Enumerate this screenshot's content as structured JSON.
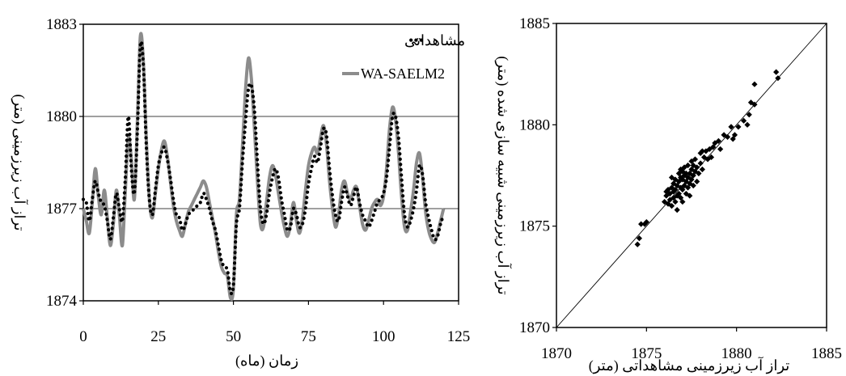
{
  "chart_data": [
    {
      "type": "line",
      "xlabel": "زمان (ماه)",
      "ylabel": "تراز آب زیرزمینی (متر)",
      "xlim": [
        0,
        125
      ],
      "ylim": [
        1874,
        1883
      ],
      "xticks": [
        0,
        25,
        50,
        75,
        100,
        125
      ],
      "yticks": [
        1874,
        1877,
        1880,
        1883
      ],
      "legend_position": "top-right",
      "series": [
        {
          "name": "مشاهداتی",
          "style": "dotted",
          "color": "#000000",
          "x": [
            0,
            1,
            2,
            3,
            4,
            5,
            6,
            7,
            8,
            9,
            10,
            11,
            12,
            13,
            14,
            15,
            16,
            17,
            18,
            19,
            20,
            21,
            22,
            23,
            24,
            25,
            26,
            27,
            28,
            29,
            30,
            31,
            32,
            33,
            34,
            35,
            36,
            37,
            38,
            39,
            40,
            41,
            42,
            43,
            44,
            45,
            46,
            47,
            48,
            49,
            50,
            51,
            52,
            53,
            54,
            55,
            56,
            57,
            58,
            59,
            60,
            61,
            62,
            63,
            64,
            65,
            66,
            67,
            68,
            69,
            70,
            71,
            72,
            73,
            74,
            75,
            76,
            77,
            78,
            79,
            80,
            81,
            82,
            83,
            84,
            85,
            86,
            87,
            88,
            89,
            90,
            91,
            92,
            93,
            94,
            95,
            96,
            97,
            98,
            99,
            100,
            101,
            102,
            103,
            104,
            105,
            106,
            107,
            108,
            109,
            110,
            111,
            112,
            113,
            114,
            115,
            116,
            117,
            118,
            119,
            120
          ],
          "y": [
            1877.3,
            1877.2,
            1876.6,
            1877.3,
            1877.9,
            1877.5,
            1877.2,
            1877.1,
            1876.6,
            1876.0,
            1876.7,
            1877.5,
            1877.0,
            1876.6,
            1878.0,
            1880.0,
            1878.3,
            1877.5,
            1879.5,
            1882.3,
            1881.7,
            1879.0,
            1877.3,
            1876.8,
            1877.6,
            1878.4,
            1878.8,
            1879.0,
            1878.6,
            1878.0,
            1877.3,
            1876.8,
            1876.7,
            1876.3,
            1876.5,
            1876.8,
            1876.9,
            1877.0,
            1877.1,
            1877.2,
            1877.5,
            1877.3,
            1877.0,
            1876.6,
            1876.3,
            1875.8,
            1875.3,
            1875.1,
            1875.0,
            1874.3,
            1874.5,
            1876.5,
            1877.0,
            1878.5,
            1879.8,
            1880.9,
            1881.0,
            1880.2,
            1878.5,
            1877.0,
            1876.5,
            1876.8,
            1877.5,
            1878.0,
            1878.3,
            1878.0,
            1877.3,
            1876.8,
            1876.3,
            1876.4,
            1877.0,
            1876.8,
            1876.4,
            1876.5,
            1877.0,
            1877.8,
            1878.3,
            1878.7,
            1878.5,
            1879.0,
            1879.6,
            1879.4,
            1878.3,
            1877.4,
            1876.8,
            1876.6,
            1877.2,
            1877.7,
            1877.4,
            1877.1,
            1877.4,
            1877.7,
            1877.2,
            1876.8,
            1876.6,
            1876.4,
            1876.6,
            1876.9,
            1877.2,
            1877.3,
            1877.5,
            1878.0,
            1879.0,
            1880.0,
            1880.0,
            1879.3,
            1878.0,
            1876.8,
            1876.4,
            1876.6,
            1877.0,
            1877.6,
            1878.4,
            1878.1,
            1877.2,
            1876.7,
            1876.3,
            1876.0,
            1876.1,
            1876.5,
            1876.8
          ]
        },
        {
          "name": "WA-SAELM2",
          "style": "solid",
          "color": "#8c8c8c",
          "x": [
            0,
            1,
            2,
            3,
            4,
            5,
            6,
            7,
            8,
            9,
            10,
            11,
            12,
            13,
            14,
            15,
            16,
            17,
            18,
            19,
            20,
            21,
            22,
            23,
            24,
            25,
            26,
            27,
            28,
            29,
            30,
            31,
            32,
            33,
            34,
            35,
            36,
            37,
            38,
            39,
            40,
            41,
            42,
            43,
            44,
            45,
            46,
            47,
            48,
            49,
            50,
            51,
            52,
            53,
            54,
            55,
            56,
            57,
            58,
            59,
            60,
            61,
            62,
            63,
            64,
            65,
            66,
            67,
            68,
            69,
            70,
            71,
            72,
            73,
            74,
            75,
            76,
            77,
            78,
            79,
            80,
            81,
            82,
            83,
            84,
            85,
            86,
            87,
            88,
            89,
            90,
            91,
            92,
            93,
            94,
            95,
            96,
            97,
            98,
            99,
            100,
            101,
            102,
            103,
            104,
            105,
            106,
            107,
            108,
            109,
            110,
            111,
            112,
            113,
            114,
            115,
            116,
            117,
            118,
            119,
            120
          ],
          "y": [
            1877.0,
            1876.6,
            1876.2,
            1877.2,
            1878.3,
            1877.4,
            1876.8,
            1877.6,
            1876.7,
            1875.8,
            1876.5,
            1877.6,
            1876.8,
            1875.8,
            1877.6,
            1879.3,
            1878.6,
            1877.3,
            1879.8,
            1882.6,
            1881.8,
            1879.2,
            1877.3,
            1876.7,
            1877.5,
            1878.3,
            1878.9,
            1879.2,
            1878.7,
            1877.9,
            1877.1,
            1876.6,
            1876.3,
            1876.1,
            1876.5,
            1876.9,
            1877.1,
            1877.3,
            1877.5,
            1877.7,
            1877.9,
            1877.7,
            1877.2,
            1876.7,
            1876.2,
            1875.6,
            1875.1,
            1874.9,
            1874.8,
            1874.1,
            1874.4,
            1876.8,
            1877.3,
            1879.0,
            1880.8,
            1881.9,
            1881.2,
            1879.6,
            1877.9,
            1876.5,
            1876.4,
            1877.2,
            1878.0,
            1878.4,
            1878.1,
            1877.5,
            1876.9,
            1876.4,
            1876.1,
            1876.5,
            1877.2,
            1876.6,
            1876.2,
            1876.7,
            1877.6,
            1878.4,
            1878.8,
            1879.0,
            1878.8,
            1879.3,
            1879.7,
            1879.1,
            1877.9,
            1877.0,
            1876.4,
            1876.8,
            1877.6,
            1877.9,
            1877.5,
            1877.3,
            1877.6,
            1877.7,
            1877.1,
            1876.5,
            1876.3,
            1876.6,
            1877.0,
            1877.2,
            1877.3,
            1877.1,
            1877.4,
            1878.3,
            1879.6,
            1880.3,
            1879.9,
            1878.8,
            1877.4,
            1876.4,
            1876.3,
            1876.9,
            1877.6,
            1878.5,
            1878.8,
            1878.0,
            1876.9,
            1876.3,
            1876.0,
            1875.9,
            1876.2,
            1876.6,
            1877.0
          ]
        }
      ]
    },
    {
      "type": "scatter",
      "xlabel": "تراز آب زیرزمینی مشاهداتی (متر)",
      "ylabel": "تراز آب زیرزمینی شبیه سازی شده (متر)",
      "xlim": [
        1870,
        1885
      ],
      "ylim": [
        1870,
        1885
      ],
      "xticks": [
        1870,
        1875,
        1880,
        1885
      ],
      "yticks": [
        1870,
        1875,
        1880,
        1885
      ],
      "reference_line": "y=x",
      "marker": "diamond",
      "points": [
        [
          1874.5,
          1874.1
        ],
        [
          1874.6,
          1874.4
        ],
        [
          1874.7,
          1875.1
        ],
        [
          1874.9,
          1875.1
        ],
        [
          1875.0,
          1875.2
        ],
        [
          1876.0,
          1876.2
        ],
        [
          1876.1,
          1876.5
        ],
        [
          1876.2,
          1876.1
        ],
        [
          1876.2,
          1876.8
        ],
        [
          1876.3,
          1876.3
        ],
        [
          1876.3,
          1876.6
        ],
        [
          1876.4,
          1876.9
        ],
        [
          1876.4,
          1876.0
        ],
        [
          1876.5,
          1876.4
        ],
        [
          1876.5,
          1877.1
        ],
        [
          1876.5,
          1876.7
        ],
        [
          1876.6,
          1876.2
        ],
        [
          1876.6,
          1877.3
        ],
        [
          1876.6,
          1876.8
        ],
        [
          1876.7,
          1876.5
        ],
        [
          1876.7,
          1877.0
        ],
        [
          1876.7,
          1875.8
        ],
        [
          1876.8,
          1876.6
        ],
        [
          1876.8,
          1877.2
        ],
        [
          1876.8,
          1877.6
        ],
        [
          1876.9,
          1876.4
        ],
        [
          1876.9,
          1876.9
        ],
        [
          1876.9,
          1877.4
        ],
        [
          1877.0,
          1876.8
        ],
        [
          1877.0,
          1877.3
        ],
        [
          1877.0,
          1877.7
        ],
        [
          1877.0,
          1876.2
        ],
        [
          1877.1,
          1877.0
        ],
        [
          1877.1,
          1877.5
        ],
        [
          1877.1,
          1877.9
        ],
        [
          1877.2,
          1876.6
        ],
        [
          1877.2,
          1877.2
        ],
        [
          1877.2,
          1877.6
        ],
        [
          1877.3,
          1876.9
        ],
        [
          1877.3,
          1877.4
        ],
        [
          1877.3,
          1878.0
        ],
        [
          1877.4,
          1877.1
        ],
        [
          1877.4,
          1877.6
        ],
        [
          1877.4,
          1876.5
        ],
        [
          1877.5,
          1877.3
        ],
        [
          1877.5,
          1877.8
        ],
        [
          1877.5,
          1878.2
        ],
        [
          1877.6,
          1877.0
        ],
        [
          1877.6,
          1877.5
        ],
        [
          1877.7,
          1877.7
        ],
        [
          1877.7,
          1878.3
        ],
        [
          1877.8,
          1877.2
        ],
        [
          1877.8,
          1877.9
        ],
        [
          1877.9,
          1877.6
        ],
        [
          1878.0,
          1878.1
        ],
        [
          1878.0,
          1878.6
        ],
        [
          1878.1,
          1877.8
        ],
        [
          1878.2,
          1878.4
        ],
        [
          1878.3,
          1878.7
        ],
        [
          1878.4,
          1878.3
        ],
        [
          1878.5,
          1878.8
        ],
        [
          1878.7,
          1878.9
        ],
        [
          1878.8,
          1879.1
        ],
        [
          1879.0,
          1879.2
        ],
        [
          1879.1,
          1878.8
        ],
        [
          1879.3,
          1879.5
        ],
        [
          1879.5,
          1879.4
        ],
        [
          1879.7,
          1879.9
        ],
        [
          1879.8,
          1879.3
        ],
        [
          1879.9,
          1879.5
        ],
        [
          1880.1,
          1879.9
        ],
        [
          1880.4,
          1880.2
        ],
        [
          1880.6,
          1880.0
        ],
        [
          1880.7,
          1880.5
        ],
        [
          1880.8,
          1881.1
        ],
        [
          1881.0,
          1881.0
        ],
        [
          1881.0,
          1882.0
        ],
        [
          1882.2,
          1882.6
        ],
        [
          1882.3,
          1882.3
        ],
        [
          1876.1,
          1876.7
        ],
        [
          1876.4,
          1877.4
        ],
        [
          1876.9,
          1877.8
        ],
        [
          1877.6,
          1878.0
        ],
        [
          1878.1,
          1878.7
        ],
        [
          1878.6,
          1878.4
        ]
      ]
    }
  ],
  "legend": {
    "observed_label": "مشاهداتی",
    "model_label": "WA-SAELM2"
  }
}
